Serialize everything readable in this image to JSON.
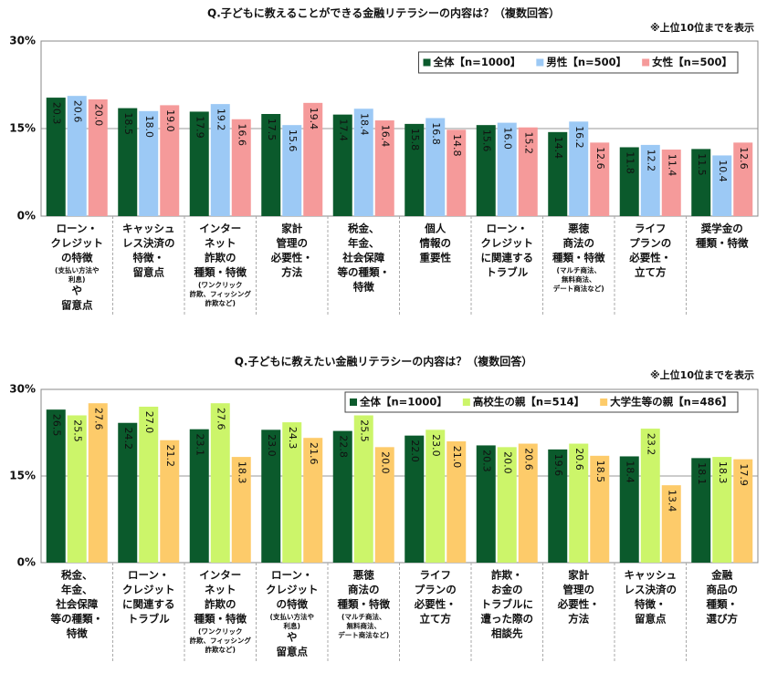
{
  "chart_data": [
    {
      "type": "bar",
      "title": "Q.子どもに教えることができる金融リテラシーの内容は？（複数回答）",
      "note": "※上位10位までを表示",
      "categories": [
        [
          "ローン・",
          "クレジット",
          "の特徴",
          {
            "note": "(支払い方法や"
          },
          {
            "note": "利息)"
          },
          "や",
          "留意点"
        ],
        [
          "キャッシュ",
          "レス決済の",
          "特徴・",
          "留意点"
        ],
        [
          "インター",
          "ネット",
          "詐欺の",
          "種類・特徴",
          {
            "note": "(ワンクリック"
          },
          {
            "note": "詐欺、フィッシング"
          },
          {
            "note": "詐欺など)"
          }
        ],
        [
          "家計",
          "管理の",
          "必要性・",
          "方法"
        ],
        [
          "税金、",
          "年金、",
          "社会保障",
          "等の種類・",
          "特徴"
        ],
        [
          "個人",
          "情報の",
          "重要性"
        ],
        [
          "ローン・",
          "クレジット",
          "に関連する",
          "トラブル"
        ],
        [
          "悪徳",
          "商法の",
          "種類・特徴",
          {
            "note": "(マルチ商法、"
          },
          {
            "note": "無料商法、"
          },
          {
            "note": "デート商法など)"
          }
        ],
        [
          "ライフ",
          "プランの",
          "必要性・",
          "立て方"
        ],
        [
          "奨学金の",
          "種類・特徴"
        ]
      ],
      "series": [
        {
          "name": "全体【n=1000】",
          "color": "#0b5a2c",
          "values": [
            20.3,
            18.5,
            17.9,
            17.5,
            17.4,
            15.8,
            15.6,
            14.4,
            11.8,
            11.5
          ],
          "value_labels": [
            "20.3",
            "18.5",
            "17.9",
            "17.5",
            "17.4",
            "15.8",
            "15.6",
            "14.4",
            "11.8",
            "11.5"
          ]
        },
        {
          "name": "男性【n=500】",
          "color": "#9cc9f5",
          "values": [
            20.6,
            18.0,
            19.2,
            15.6,
            18.4,
            16.8,
            16.0,
            16.2,
            12.2,
            10.4
          ],
          "value_labels": [
            "20.6",
            "18.0",
            "19.2",
            "15.6",
            "18.4",
            "16.8",
            "16.0",
            "16.2",
            "12.2",
            "10.4"
          ]
        },
        {
          "name": "女性【n=500】",
          "color": "#f59a9a",
          "values": [
            20.0,
            19.0,
            16.6,
            19.4,
            16.4,
            14.8,
            15.2,
            12.6,
            11.4,
            12.6
          ],
          "value_labels": [
            "20.0",
            "19.0",
            "16.6",
            "19.4",
            "16.4",
            "14.8",
            "15.2",
            "12.6",
            "11.4",
            "12.6"
          ]
        }
      ],
      "ylim": [
        0,
        30
      ],
      "yticks": [
        {
          "value": 0,
          "label": "0%"
        },
        {
          "value": 15,
          "label": "15%"
        },
        {
          "value": 30,
          "label": "30%"
        }
      ],
      "legend": "upper right"
    },
    {
      "type": "bar",
      "title": "Q.子どもに教えたい金融リテラシーの内容は？（複数回答）",
      "note": "※上位10位までを表示",
      "categories": [
        [
          "税金、",
          "年金、",
          "社会保障",
          "等の種類・",
          "特徴"
        ],
        [
          "ローン・",
          "クレジット",
          "に関連する",
          "トラブル"
        ],
        [
          "インター",
          "ネット",
          "詐欺の",
          "種類・特徴",
          {
            "note": "(ワンクリック"
          },
          {
            "note": "詐欺、フィッシング"
          },
          {
            "note": "詐欺など)"
          }
        ],
        [
          "ローン・",
          "クレジット",
          "の特徴",
          {
            "note": "(支払い方法や"
          },
          {
            "note": "利息)"
          },
          "や",
          "留意点"
        ],
        [
          "悪徳",
          "商法の",
          "種類・特徴",
          {
            "note": "(マルチ商法、"
          },
          {
            "note": "無料商法、"
          },
          {
            "note": "デート商法など)"
          }
        ],
        [
          "ライフ",
          "プランの",
          "必要性・",
          "立て方"
        ],
        [
          "詐欺・",
          "お金の",
          "トラブルに",
          "遭った際の",
          "相談先"
        ],
        [
          "家計",
          "管理の",
          "必要性・",
          "方法"
        ],
        [
          "キャッシュ",
          "レス決済の",
          "特徴・",
          "留意点"
        ],
        [
          "金融",
          "商品の",
          "種類・",
          "選び方"
        ]
      ],
      "series": [
        {
          "name": "全体【n=1000】",
          "color": "#0b5a2c",
          "values": [
            26.5,
            24.2,
            23.1,
            23.0,
            22.8,
            22.0,
            20.3,
            19.6,
            18.4,
            18.1
          ],
          "value_labels": [
            "26.5",
            "24.2",
            "23.1",
            "23.0",
            "22.8",
            "22.0",
            "20.3",
            "19.6",
            "18.4",
            "18.1"
          ]
        },
        {
          "name": "高校生の親【n=514】",
          "color": "#ccf56a",
          "values": [
            25.5,
            27.0,
            27.6,
            24.3,
            25.5,
            23.0,
            20.0,
            20.6,
            23.2,
            18.3
          ],
          "value_labels": [
            "25.5",
            "27.0",
            "27.6",
            "24.3",
            "25.5",
            "23.0",
            "20.0",
            "20.6",
            "23.2",
            "18.3"
          ]
        },
        {
          "name": "大学生等の親【n=486】",
          "color": "#fdcb6a",
          "values": [
            27.6,
            21.2,
            18.3,
            21.6,
            20.0,
            21.0,
            20.6,
            18.5,
            13.4,
            17.9
          ],
          "value_labels": [
            "27.6",
            "21.2",
            "18.3",
            "21.6",
            "20.0",
            "21.0",
            "20.6",
            "18.5",
            "13.4",
            "17.9"
          ]
        }
      ],
      "ylim": [
        0,
        30
      ],
      "yticks": [
        {
          "value": 0,
          "label": "0%"
        },
        {
          "value": 15,
          "label": "15%"
        },
        {
          "value": 30,
          "label": "30%"
        }
      ],
      "legend": "upper right"
    }
  ]
}
